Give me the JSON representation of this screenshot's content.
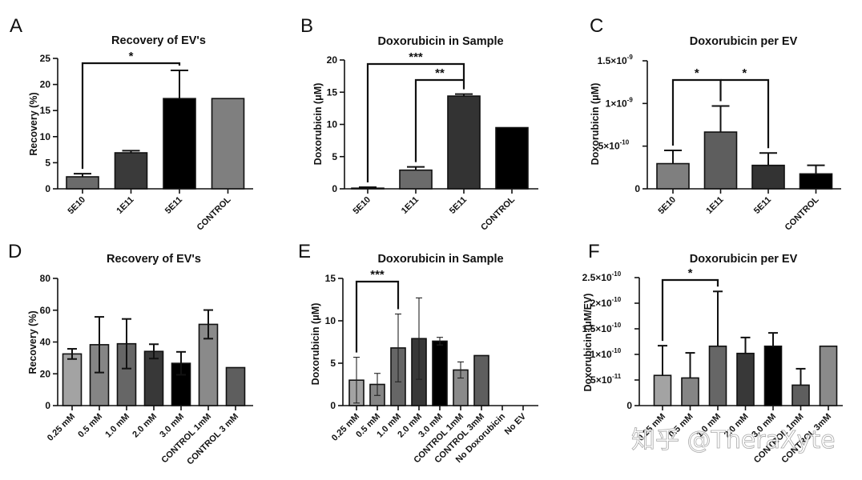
{
  "watermark": "知乎 @TheraXyte",
  "chart_data": [
    {
      "panel": "A",
      "type": "bar",
      "title": "Recovery of EV's",
      "xlabel": "",
      "ylabel": "Recovery (%)",
      "ylim": [
        0,
        25
      ],
      "yticks": [
        0,
        5,
        10,
        15,
        20,
        25
      ],
      "ytick_labels": [
        "0",
        "5",
        "10",
        "15",
        "20",
        "25"
      ],
      "categories": [
        "5E10",
        "1E11",
        "5E11",
        "CONTROL"
      ],
      "values": [
        2.3,
        6.9,
        17.3,
        17.3
      ],
      "errors": [
        0.6,
        0.4,
        5.4,
        null
      ],
      "error_style": "upper",
      "colors": [
        "#6b6b6b",
        "#3a3a3a",
        "#000000",
        "#7f7f7f"
      ],
      "significance": [
        {
          "from": "5E10",
          "to": "5E11",
          "label": "*"
        }
      ]
    },
    {
      "panel": "B",
      "type": "bar",
      "title": "Doxorubicin in Sample",
      "xlabel": "",
      "ylabel": "Doxorubicin (μM)",
      "ylim": [
        0,
        20
      ],
      "yticks": [
        0,
        5,
        10,
        15,
        20
      ],
      "ytick_labels": [
        "0",
        "5",
        "10",
        "15",
        "20"
      ],
      "categories": [
        "5E10",
        "1E11",
        "5E11",
        "CONTROL"
      ],
      "values": [
        0.1,
        2.9,
        14.4,
        9.5
      ],
      "errors": [
        0.15,
        0.5,
        0.3,
        null
      ],
      "error_style": "upper",
      "colors": [
        "#6b6b6b",
        "#6b6b6b",
        "#333333",
        "#000000"
      ],
      "significance": [
        {
          "from": "5E10",
          "to": "5E11",
          "label": "***"
        },
        {
          "from": "1E11",
          "to": "5E11",
          "label": "**"
        }
      ]
    },
    {
      "panel": "C",
      "type": "bar",
      "title": "Doxorubicin per EV",
      "xlabel": "",
      "ylabel": "Doxorubicin (μM)",
      "ylim": [
        0,
        1.5e-09
      ],
      "yticks": [
        0,
        5e-10,
        1e-09,
        1.5e-09
      ],
      "ytick_labels": [
        {
          "base": "0",
          "exp": ""
        },
        {
          "base": "5×10",
          "exp": "-10"
        },
        {
          "base": "1×10",
          "exp": "-9"
        },
        {
          "base": "1.5×10",
          "exp": "-9"
        }
      ],
      "categories": [
        "5E10",
        "1E11",
        "5E11",
        "CONTROL"
      ],
      "values": [
        2.95e-10,
        6.65e-10,
        2.75e-10,
        1.75e-10
      ],
      "errors": [
        1.55e-10,
        3.05e-10,
        1.45e-10,
        1e-10
      ],
      "error_style": "upper",
      "colors": [
        "#7f7f7f",
        "#5e5e5e",
        "#333333",
        "#000000"
      ],
      "significance": [
        {
          "from": "5E10",
          "to": "1E11",
          "label": "*"
        },
        {
          "from": "1E11",
          "to": "5E11",
          "label": "*"
        }
      ]
    },
    {
      "panel": "D",
      "type": "bar",
      "title": "Recovery of EV's",
      "xlabel": "",
      "ylabel": "Recovery (%)",
      "ylim": [
        0,
        80
      ],
      "yticks": [
        0,
        20,
        40,
        60,
        80
      ],
      "ytick_labels": [
        "0",
        "20",
        "40",
        "60",
        "80"
      ],
      "categories": [
        "0.25 mM",
        "0.5 mM",
        "1.0 mM",
        "2.0 mM",
        "3.0 mM",
        "CONTROL 1mM",
        "CONTROL 3 mM"
      ],
      "values": [
        32.5,
        38.3,
        38.9,
        34.1,
        26.6,
        51.1,
        23.9
      ],
      "errors": [
        3.2,
        17.5,
        15.6,
        4.5,
        7.2,
        9.0,
        null
      ],
      "error_style": "both",
      "colors": [
        "#a3a3a3",
        "#858585",
        "#666666",
        "#383838",
        "#000000",
        "#8a8a8a",
        "#5e5e5e"
      ],
      "significance": []
    },
    {
      "panel": "E",
      "type": "bar",
      "title": "Doxorubicin in Sample",
      "xlabel": "",
      "ylabel": "Doxorubicin (μM)",
      "ylim": [
        0,
        15
      ],
      "yticks": [
        0,
        5,
        10,
        15
      ],
      "ytick_labels": [
        "0",
        "5",
        "10",
        "15"
      ],
      "categories": [
        "0.25 mM",
        "0.5 mM",
        "1.0 mM",
        "2.0 mM",
        "3.0 mM",
        "CONTROL 1mM",
        "CONTROL 3mM",
        "No Doxorubicin",
        "No EV"
      ],
      "values": [
        3.0,
        2.5,
        6.8,
        7.9,
        7.6,
        4.2,
        5.9,
        0,
        0
      ],
      "errors": [
        2.7,
        1.3,
        4.0,
        4.8,
        0.45,
        0.95,
        null,
        null,
        null
      ],
      "error_style": "both",
      "colors": [
        "#a3a3a3",
        "#858585",
        "#666666",
        "#383838",
        "#000000",
        "#8a8a8a",
        "#5e5e5e",
        "#5e5e5e",
        "#5e5e5e"
      ],
      "significance": [
        {
          "from": "0.25 mM",
          "to": "1.0 mM",
          "label": "***"
        }
      ]
    },
    {
      "panel": "F",
      "type": "bar",
      "title": "Doxorubicin per EV",
      "xlabel": "",
      "ylabel": "Doxorubicin (μM/EV)",
      "ylim": [
        0,
        2.5e-10
      ],
      "yticks": [
        0,
        5e-11,
        1e-10,
        1.5e-10,
        2e-10,
        2.5e-10
      ],
      "ytick_labels": [
        {
          "base": "0",
          "exp": ""
        },
        {
          "base": "5×10",
          "exp": "-11"
        },
        {
          "base": "1×10",
          "exp": "-10"
        },
        {
          "base": "1.5×10",
          "exp": "-10"
        },
        {
          "base": "2×10",
          "exp": "-10"
        },
        {
          "base": "2.5×10",
          "exp": "-10"
        }
      ],
      "categories": [
        "0.25 mM",
        "0.5 mM",
        "1.0 mM",
        "2.0 mM",
        "3.0 mM",
        "CONTROL 1mM",
        "CONTROL 3mM"
      ],
      "values": [
        5.9e-11,
        5.4e-11,
        1.16e-10,
        1.02e-10,
        1.16e-10,
        4e-11,
        1.16e-10
      ],
      "errors": [
        5.8e-11,
        4.9e-11,
        1.07e-10,
        3.1e-11,
        2.6e-11,
        3.2e-11,
        null
      ],
      "error_style": "upper",
      "colors": [
        "#a3a3a3",
        "#858585",
        "#666666",
        "#383838",
        "#000000",
        "#5e5e5e",
        "#8a8a8a"
      ],
      "significance": [
        {
          "from": "0.25 mM",
          "to": "1.0 mM",
          "label": "*"
        }
      ]
    }
  ]
}
